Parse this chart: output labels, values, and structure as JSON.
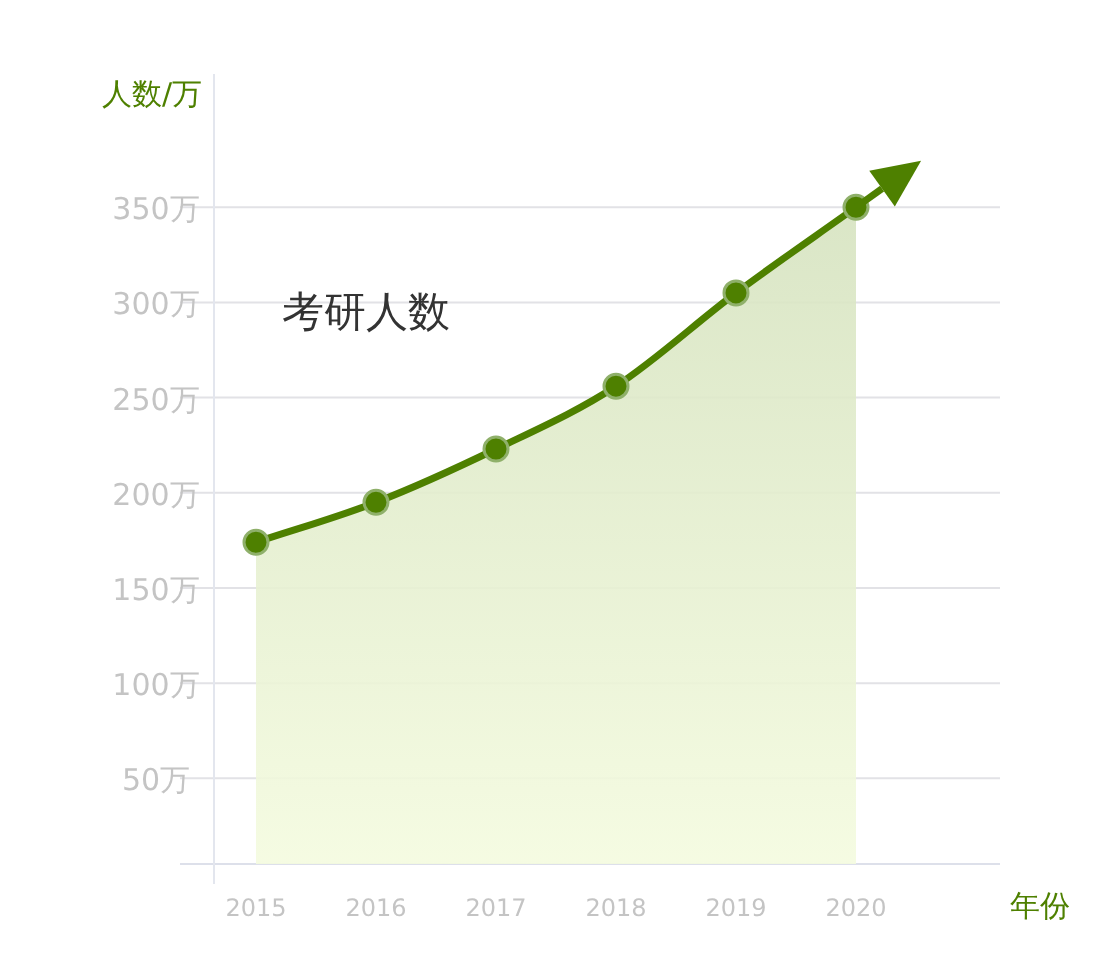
{
  "chart_data": {
    "type": "area",
    "title": "考研人数",
    "xlabel": "年份",
    "ylabel": "人数/万",
    "categories": [
      "2015",
      "2016",
      "2017",
      "2018",
      "2019",
      "2020"
    ],
    "series": [
      {
        "color": "#4e8000",
        "values": [
          174,
          195,
          223,
          256,
          305,
          350
        ]
      }
    ],
    "ylim": [
      5,
      420
    ],
    "yticks": [
      {
        "value": 50,
        "label": "50万"
      },
      {
        "value": 100,
        "label": "100万"
      },
      {
        "value": 150,
        "label": "150万"
      },
      {
        "value": 200,
        "label": "200万"
      },
      {
        "value": 250,
        "label": "250万"
      },
      {
        "value": 300,
        "label": "300万"
      },
      {
        "value": 350,
        "label": "350万"
      }
    ],
    "grid": "y",
    "marker": "circle",
    "line_style": "solid"
  }
}
